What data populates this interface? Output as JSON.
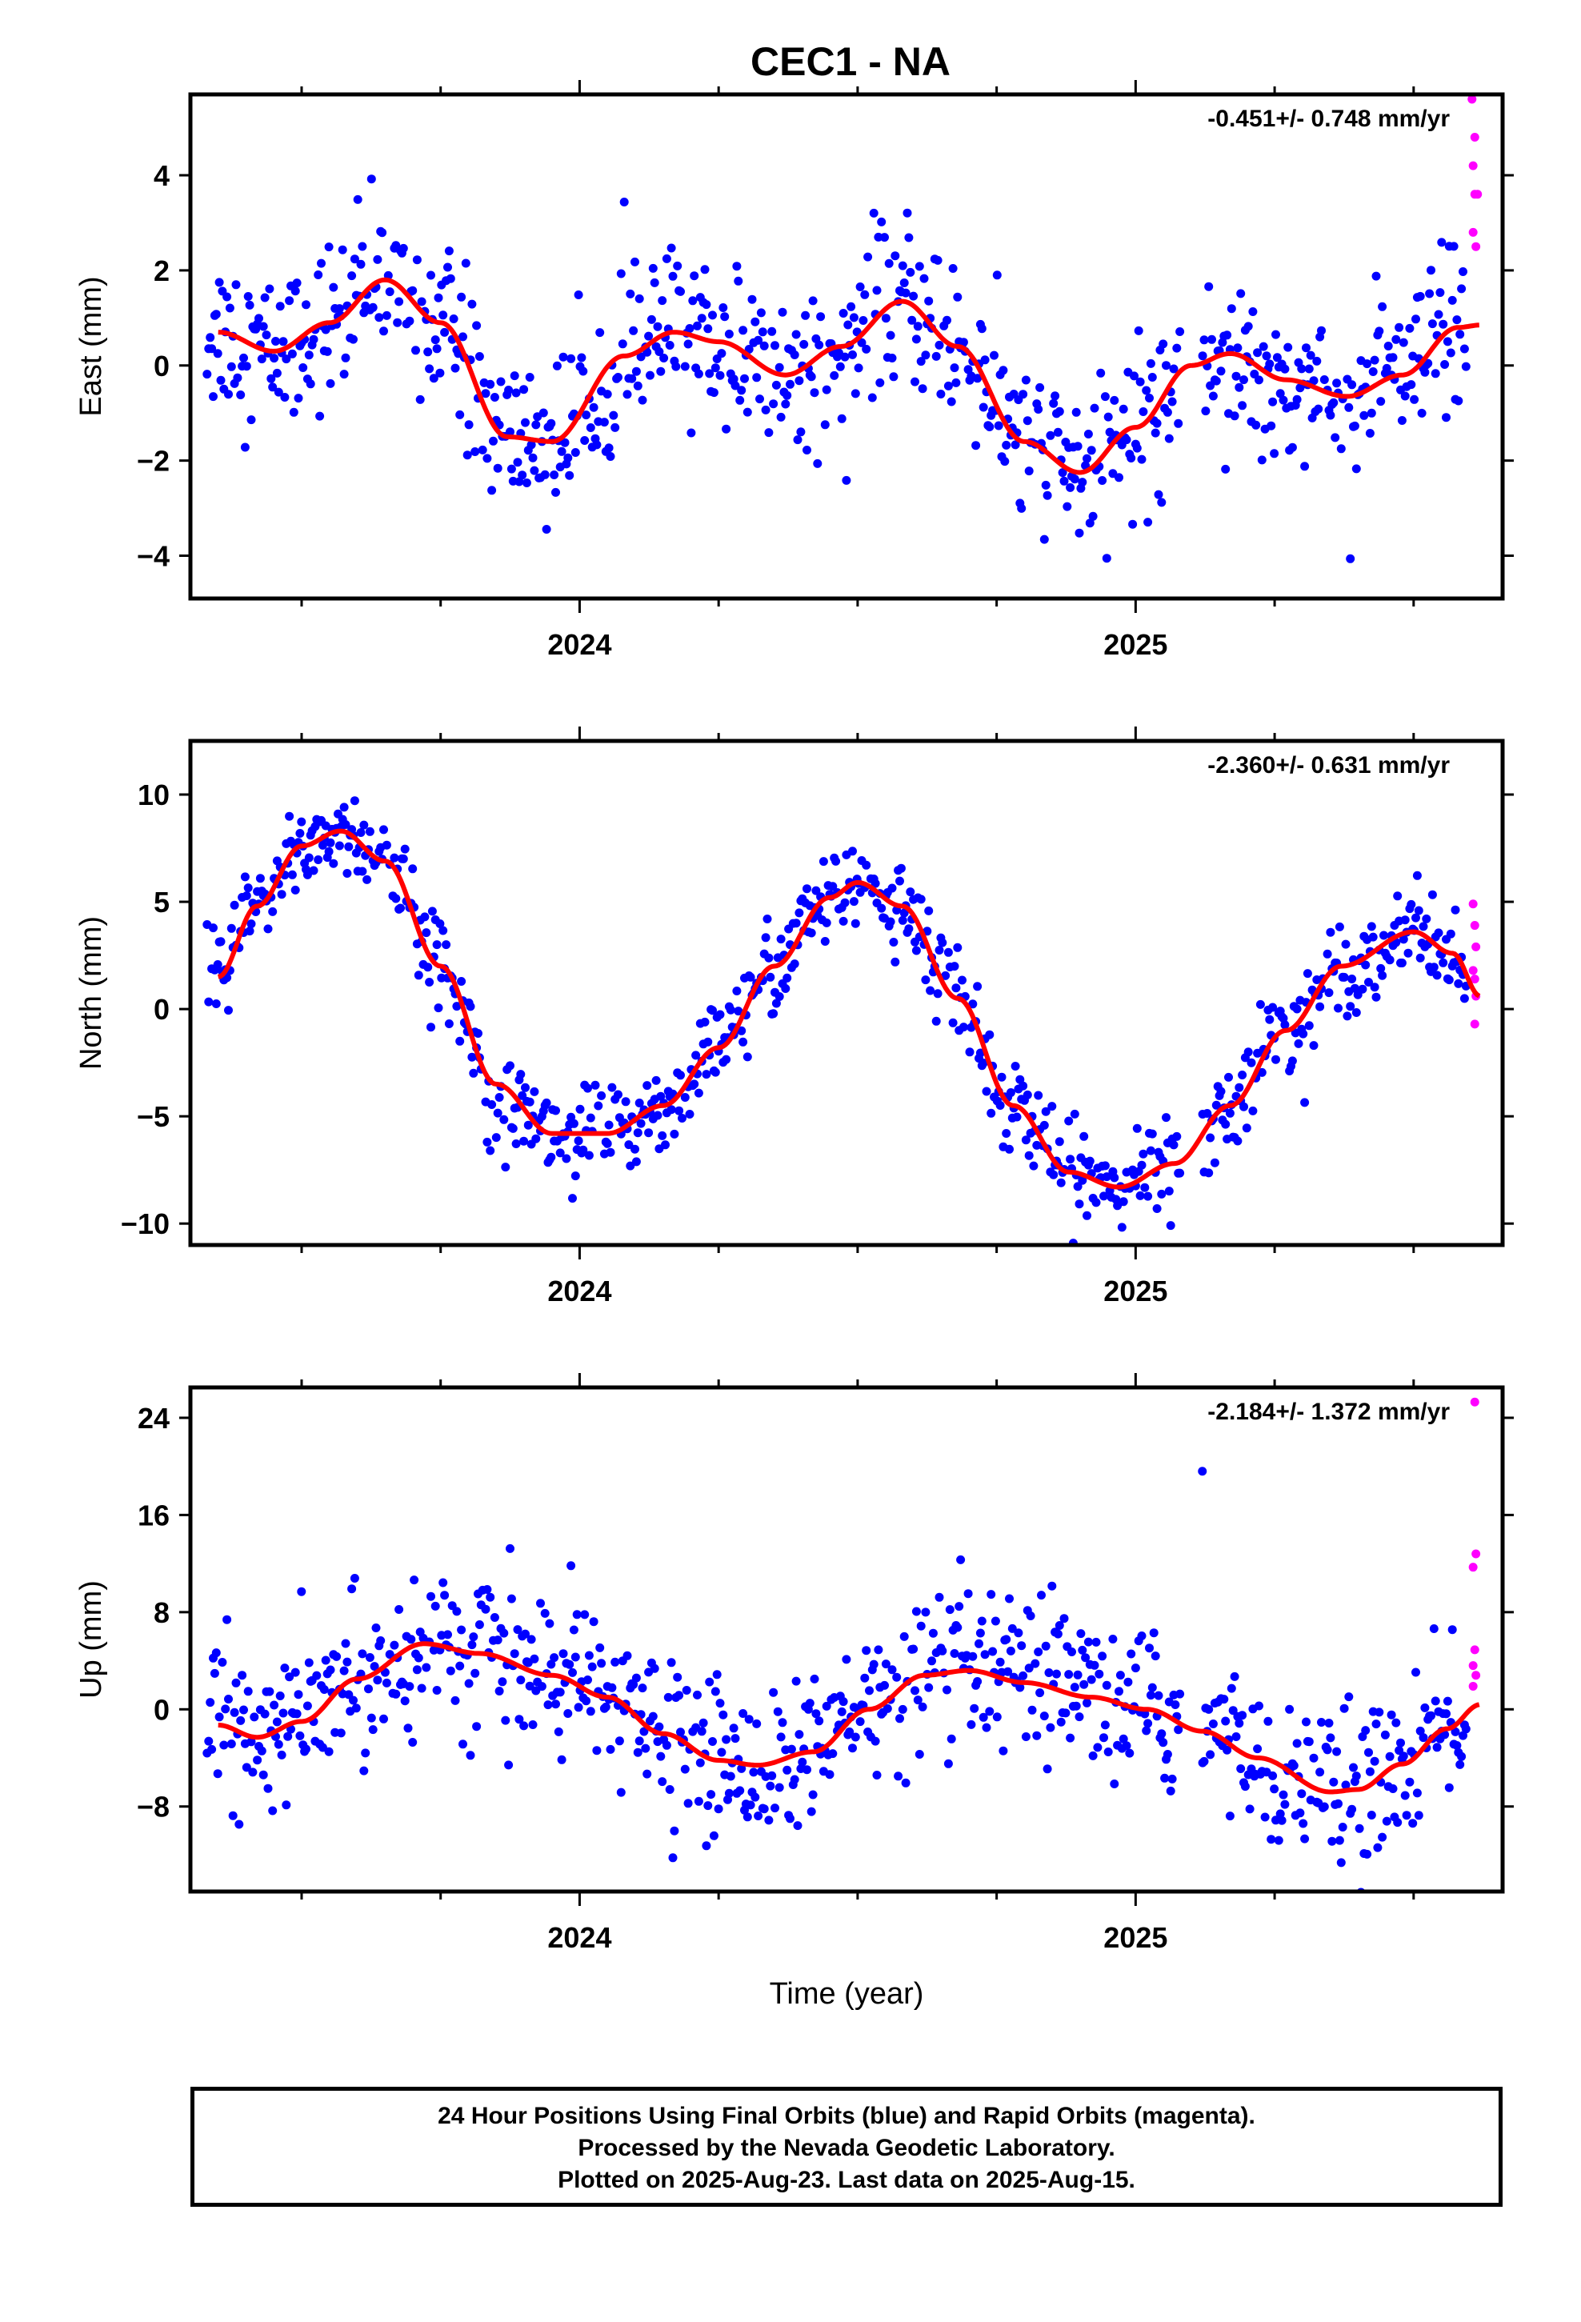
{
  "title": "CEC1 - NA",
  "colors": {
    "final": "#0000ff",
    "rapid": "#ff00ff",
    "model": "#ff0000",
    "frame": "#000000"
  },
  "footer": {
    "line1": "24 Hour Positions Using Final Orbits (blue) and Rapid Orbits (magenta).",
    "line2": "Processed by the Nevada Geodetic Laboratory.",
    "line3": "Plotted on 2025-Aug-23. Last data on 2025-Aug-15."
  },
  "chart_data": [
    {
      "type": "scatter",
      "component": "east",
      "ylabel": "East (mm)",
      "xlabel": "",
      "rate_label": "-0.451+/- 0.748 mm/yr",
      "xlim": [
        2023.3,
        2025.66
      ],
      "ylim": [
        -4.9,
        5.7
      ],
      "yticks": [
        -4,
        -2,
        0,
        2,
        4
      ],
      "ytick_labels": [
        "−4",
        "−2",
        "0",
        "2",
        "4"
      ],
      "xticks_major": [
        2024,
        2025
      ],
      "xtick_labels": [
        "2024",
        "2025"
      ],
      "model": {
        "trend": -0.451,
        "mean": 0.0,
        "annual": [
          {
            "x": 2023.35,
            "y": 0.7
          },
          {
            "x": 2023.45,
            "y": 0.3
          },
          {
            "x": 2023.55,
            "y": 0.9
          },
          {
            "x": 2023.65,
            "y": 1.8
          },
          {
            "x": 2023.75,
            "y": 0.9
          },
          {
            "x": 2023.87,
            "y": -1.5
          },
          {
            "x": 2023.95,
            "y": -1.6
          },
          {
            "x": 2024.08,
            "y": 0.2
          },
          {
            "x": 2024.17,
            "y": 0.7
          },
          {
            "x": 2024.25,
            "y": 0.5
          },
          {
            "x": 2024.37,
            "y": -0.2
          },
          {
            "x": 2024.47,
            "y": 0.4
          },
          {
            "x": 2024.58,
            "y": 1.35
          },
          {
            "x": 2024.68,
            "y": 0.4
          },
          {
            "x": 2024.8,
            "y": -1.6
          },
          {
            "x": 2024.9,
            "y": -2.25
          },
          {
            "x": 2025.0,
            "y": -1.3
          },
          {
            "x": 2025.1,
            "y": 0.0
          },
          {
            "x": 2025.17,
            "y": 0.25
          },
          {
            "x": 2025.27,
            "y": -0.3
          },
          {
            "x": 2025.38,
            "y": -0.65
          },
          {
            "x": 2025.48,
            "y": -0.2
          },
          {
            "x": 2025.58,
            "y": 0.8
          },
          {
            "x": 2025.62,
            "y": 0.85
          }
        ]
      },
      "scatter_sigma": 0.85,
      "rapid_points": [
        {
          "x": 2025.605,
          "y": 5.6
        },
        {
          "x": 2025.61,
          "y": 4.8
        },
        {
          "x": 2025.607,
          "y": 4.2
        },
        {
          "x": 2025.61,
          "y": 3.6
        },
        {
          "x": 2025.615,
          "y": 3.6
        },
        {
          "x": 2025.607,
          "y": 2.8
        },
        {
          "x": 2025.612,
          "y": 2.5
        }
      ]
    },
    {
      "type": "scatter",
      "component": "north",
      "ylabel": "North (mm)",
      "xlabel": "",
      "rate_label": "-2.360+/- 0.631 mm/yr",
      "xlim": [
        2023.3,
        2025.66
      ],
      "ylim": [
        -11.0,
        12.5
      ],
      "yticks": [
        -10,
        -5,
        0,
        5,
        10
      ],
      "ytick_labels": [
        "−10",
        "−5",
        "0",
        "5",
        "10"
      ],
      "xticks_major": [
        2024,
        2025
      ],
      "xtick_labels": [
        "2024",
        "2025"
      ],
      "model": {
        "annual": [
          {
            "x": 2023.35,
            "y": 1.5
          },
          {
            "x": 2023.42,
            "y": 4.8
          },
          {
            "x": 2023.5,
            "y": 7.6
          },
          {
            "x": 2023.57,
            "y": 8.3
          },
          {
            "x": 2023.65,
            "y": 6.9
          },
          {
            "x": 2023.75,
            "y": 2.0
          },
          {
            "x": 2023.85,
            "y": -3.5
          },
          {
            "x": 2023.95,
            "y": -5.8
          },
          {
            "x": 2024.05,
            "y": -5.8
          },
          {
            "x": 2024.15,
            "y": -4.5
          },
          {
            "x": 2024.25,
            "y": -1.8
          },
          {
            "x": 2024.35,
            "y": 2.0
          },
          {
            "x": 2024.45,
            "y": 5.2
          },
          {
            "x": 2024.5,
            "y": 5.9
          },
          {
            "x": 2024.58,
            "y": 4.8
          },
          {
            "x": 2024.68,
            "y": 0.5
          },
          {
            "x": 2024.78,
            "y": -4.5
          },
          {
            "x": 2024.88,
            "y": -7.6
          },
          {
            "x": 2024.97,
            "y": -8.3
          },
          {
            "x": 2025.07,
            "y": -7.2
          },
          {
            "x": 2025.17,
            "y": -4.5
          },
          {
            "x": 2025.27,
            "y": -1.0
          },
          {
            "x": 2025.37,
            "y": 2.0
          },
          {
            "x": 2025.5,
            "y": 3.6
          },
          {
            "x": 2025.57,
            "y": 2.6
          },
          {
            "x": 2025.62,
            "y": 0.6
          }
        ]
      },
      "scatter_sigma": 1.1,
      "rapid_points": [
        {
          "x": 2025.607,
          "y": 4.9
        },
        {
          "x": 2025.61,
          "y": 3.9
        },
        {
          "x": 2025.612,
          "y": 2.9
        },
        {
          "x": 2025.607,
          "y": 1.8
        },
        {
          "x": 2025.61,
          "y": 1.4
        },
        {
          "x": 2025.612,
          "y": 0.6
        },
        {
          "x": 2025.61,
          "y": -0.7
        }
      ]
    },
    {
      "type": "scatter",
      "component": "up",
      "ylabel": "Up (mm)",
      "xlabel": "Time (year)",
      "rate_label": "-2.184+/- 1.372 mm/yr",
      "xlim": [
        2023.3,
        2025.66
      ],
      "ylim": [
        -15.0,
        26.5
      ],
      "yticks": [
        -8,
        0,
        8,
        16,
        24
      ],
      "ytick_labels": [
        "−8",
        "0",
        "8",
        "16",
        "24"
      ],
      "xticks_major": [
        2024,
        2025
      ],
      "xtick_labels": [
        "2024",
        "2025"
      ],
      "model": {
        "annual": [
          {
            "x": 2023.35,
            "y": -1.3
          },
          {
            "x": 2023.42,
            "y": -2.3
          },
          {
            "x": 2023.5,
            "y": -1.0
          },
          {
            "x": 2023.6,
            "y": 2.5
          },
          {
            "x": 2023.72,
            "y": 5.4
          },
          {
            "x": 2023.82,
            "y": 4.6
          },
          {
            "x": 2023.95,
            "y": 2.8
          },
          {
            "x": 2024.05,
            "y": 1.0
          },
          {
            "x": 2024.15,
            "y": -2.0
          },
          {
            "x": 2024.25,
            "y": -4.2
          },
          {
            "x": 2024.32,
            "y": -4.6
          },
          {
            "x": 2024.42,
            "y": -3.5
          },
          {
            "x": 2024.52,
            "y": 0.0
          },
          {
            "x": 2024.62,
            "y": 2.8
          },
          {
            "x": 2024.7,
            "y": 3.2
          },
          {
            "x": 2024.8,
            "y": 2.2
          },
          {
            "x": 2024.92,
            "y": 1.0
          },
          {
            "x": 2025.02,
            "y": 0.0
          },
          {
            "x": 2025.12,
            "y": -1.8
          },
          {
            "x": 2025.22,
            "y": -4.0
          },
          {
            "x": 2025.35,
            "y": -6.8
          },
          {
            "x": 2025.4,
            "y": -6.6
          },
          {
            "x": 2025.48,
            "y": -4.5
          },
          {
            "x": 2025.56,
            "y": -1.6
          },
          {
            "x": 2025.62,
            "y": 0.4
          }
        ]
      },
      "scatter_sigma": 3.2,
      "rapid_points": [
        {
          "x": 2025.61,
          "y": 25.3
        },
        {
          "x": 2025.612,
          "y": 12.8
        },
        {
          "x": 2025.607,
          "y": 11.7
        },
        {
          "x": 2025.61,
          "y": 4.9
        },
        {
          "x": 2025.607,
          "y": 3.6
        },
        {
          "x": 2025.612,
          "y": 2.8
        },
        {
          "x": 2025.607,
          "y": 1.9
        }
      ],
      "outliers": [
        {
          "x": 2025.12,
          "y": 19.6
        }
      ]
    }
  ]
}
